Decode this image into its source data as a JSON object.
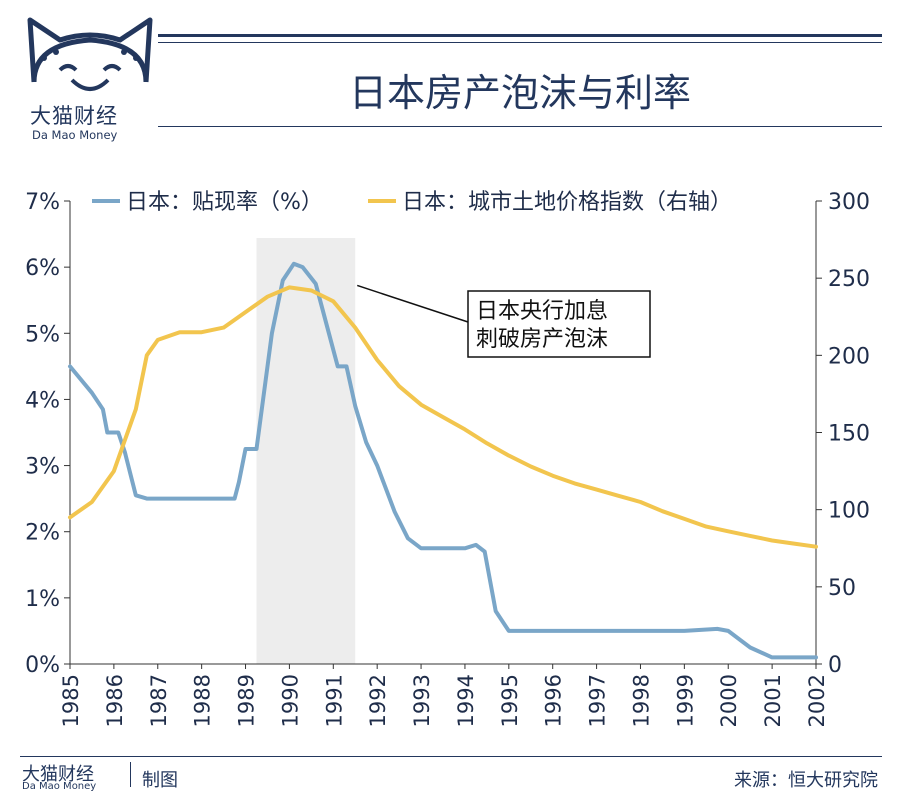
{
  "brand": {
    "name_cn": "大猫财经",
    "name_en": "Da Mao Money"
  },
  "header": {
    "title": "日本房产泡沫与利率"
  },
  "footer": {
    "brand_cn": "大猫财经",
    "brand_en": "Da Mao Money",
    "made_label": "制图",
    "source": "来源：恒大研究院"
  },
  "colors": {
    "rate": "#7aa6c8",
    "land": "#f2c54e",
    "navy": "#23375d",
    "shade": "#ededed"
  },
  "chart_data": {
    "type": "line",
    "legend_position": "top",
    "x_ticks": [
      "1985",
      "1986",
      "1987",
      "1988",
      "1989",
      "1990",
      "1991",
      "1992",
      "1993",
      "1994",
      "1995",
      "1996",
      "1997",
      "1998",
      "1999",
      "2000",
      "2001",
      "2002"
    ],
    "xlim": [
      1985,
      2002
    ],
    "y_left": {
      "lim": [
        0,
        7
      ],
      "ticks": [
        "0%",
        "1%",
        "2%",
        "3%",
        "4%",
        "5%",
        "6%",
        "7%"
      ]
    },
    "y_right": {
      "lim": [
        0,
        300
      ],
      "ticks": [
        "0",
        "50",
        "100",
        "150",
        "200",
        "250",
        "300"
      ]
    },
    "shaded_region": [
      1989.25,
      1991.5
    ],
    "annotation": {
      "lines": [
        "日本央行加息",
        "刺破房产泡沫"
      ],
      "points_to": [
        1991.5,
        244
      ]
    },
    "series": [
      {
        "name": "日本：贴现率（%）",
        "axis": "left",
        "points": [
          [
            1985,
            4.5
          ],
          [
            1985.5,
            4.1
          ],
          [
            1985.75,
            3.85
          ],
          [
            1985.85,
            3.5
          ],
          [
            1986.1,
            3.5
          ],
          [
            1986.25,
            3.2
          ],
          [
            1986.5,
            2.55
          ],
          [
            1986.75,
            2.5
          ],
          [
            1987,
            2.5
          ],
          [
            1987.5,
            2.5
          ],
          [
            1988,
            2.5
          ],
          [
            1988.25,
            2.5
          ],
          [
            1988.5,
            2.5
          ],
          [
            1988.75,
            2.5
          ],
          [
            1988.85,
            2.75
          ],
          [
            1989.0,
            3.25
          ],
          [
            1989.25,
            3.25
          ],
          [
            1989.4,
            4.0
          ],
          [
            1989.6,
            5.0
          ],
          [
            1989.85,
            5.8
          ],
          [
            1990.1,
            6.05
          ],
          [
            1990.3,
            6.0
          ],
          [
            1990.6,
            5.75
          ],
          [
            1990.9,
            5.0
          ],
          [
            1991.1,
            4.5
          ],
          [
            1991.3,
            4.5
          ],
          [
            1991.5,
            3.9
          ],
          [
            1991.75,
            3.35
          ],
          [
            1992.0,
            3.0
          ],
          [
            1992.4,
            2.3
          ],
          [
            1992.7,
            1.9
          ],
          [
            1993.0,
            1.75
          ],
          [
            1993.5,
            1.75
          ],
          [
            1994.0,
            1.75
          ],
          [
            1994.25,
            1.8
          ],
          [
            1994.45,
            1.7
          ],
          [
            1994.7,
            0.8
          ],
          [
            1995.0,
            0.5
          ],
          [
            1995.5,
            0.5
          ],
          [
            1996,
            0.5
          ],
          [
            1997,
            0.5
          ],
          [
            1998,
            0.5
          ],
          [
            1999,
            0.5
          ],
          [
            1999.75,
            0.53
          ],
          [
            2000,
            0.5
          ],
          [
            2000.5,
            0.25
          ],
          [
            2001,
            0.1
          ],
          [
            2002,
            0.1
          ]
        ]
      },
      {
        "name": "日本：城市土地价格指数（右轴）",
        "axis": "right",
        "points": [
          [
            1985,
            95
          ],
          [
            1985.5,
            105
          ],
          [
            1986,
            125
          ],
          [
            1986.5,
            165
          ],
          [
            1986.75,
            200
          ],
          [
            1987,
            210
          ],
          [
            1987.5,
            215
          ],
          [
            1988,
            215
          ],
          [
            1988.5,
            218
          ],
          [
            1989,
            228
          ],
          [
            1989.5,
            238
          ],
          [
            1990,
            244
          ],
          [
            1990.5,
            242
          ],
          [
            1991,
            235
          ],
          [
            1991.5,
            218
          ],
          [
            1992,
            197
          ],
          [
            1992.5,
            180
          ],
          [
            1993,
            168
          ],
          [
            1993.5,
            160
          ],
          [
            1994,
            152
          ],
          [
            1994.5,
            143
          ],
          [
            1995,
            135
          ],
          [
            1995.5,
            128
          ],
          [
            1996,
            122
          ],
          [
            1996.5,
            117
          ],
          [
            1997,
            113
          ],
          [
            1997.5,
            109
          ],
          [
            1998,
            105
          ],
          [
            1998.5,
            99
          ],
          [
            1999,
            94
          ],
          [
            1999.5,
            89
          ],
          [
            2000,
            86
          ],
          [
            2000.5,
            83
          ],
          [
            2001,
            80
          ],
          [
            2001.5,
            78
          ],
          [
            2002,
            76
          ]
        ]
      }
    ]
  }
}
